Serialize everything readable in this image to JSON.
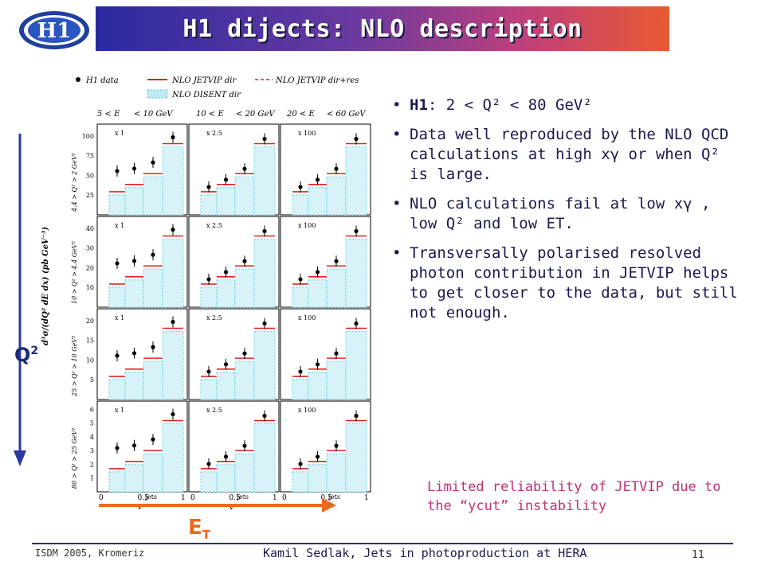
{
  "logo": {
    "text": "H1"
  },
  "title": "H1 dijects: NLO description",
  "figure": {
    "legend": {
      "data": "H1 data",
      "jetvip_dir": "NLO JETVIP dir",
      "jetvip_dir_res": "NLO JETVIP dir+res",
      "disent_dir": "NLO DISENT dir"
    },
    "col_headers": [
      "5 < E",
      "10 < E",
      "20 < E"
    ],
    "col_header_tails": [
      "< 10 GeV",
      "< 20 GeV",
      "< 60 GeV"
    ],
    "row_labels": [
      "4.4 > Q² > 2 GeV²",
      "10 > Q² > 4.4 GeV²",
      "25 > Q² > 10 GeV²",
      "80 > Q² > 25 GeV²"
    ],
    "y_axis_label": "d³σ/(dQ² dE dx) (pb GeV⁻³)",
    "scale_factors": [
      "x 1",
      "x 2.5",
      "x 100"
    ],
    "x_ticks": [
      "0",
      "0.5",
      "1"
    ],
    "x_axis_label": "x",
    "x_axis_sub": "γ",
    "x_axis_sup": "jets",
    "y_ticks": [
      [
        "25",
        "50",
        "75",
        "100"
      ],
      [
        "10",
        "20",
        "30",
        "40"
      ],
      [
        "5",
        "10",
        "15",
        "20"
      ],
      [
        "1",
        "2",
        "3",
        "4",
        "5",
        "6"
      ]
    ],
    "colors": {
      "nlo": "#e02020",
      "disent": "#40c8e0",
      "data": "#000000"
    }
  },
  "q2_label": "Q",
  "q2_sup": "2",
  "et_label": "E",
  "et_sub": "T",
  "bullets": [
    {
      "lead": "H1",
      "text": ":   2 < Q² < 80 GeV²"
    },
    {
      "lead": "",
      "text": "Data well reproduced by the NLO QCD calculations at high xγ or when Q² is large."
    },
    {
      "lead": "",
      "text": "NLO calculations fail at low xγ , low Q² and low ET."
    },
    {
      "lead": "",
      "text": "Transversally polarised resolved photon contribution in JETVIP helps to get closer to the data, but still not enough."
    }
  ],
  "note": "Limited reliability of JETVIP due to the “ycut” instability",
  "footer": {
    "left": "ISDM 2005, Kromeriz",
    "middle": "Kamil Sedlak,   Jets in photoproduction at HERA",
    "page": "11"
  }
}
